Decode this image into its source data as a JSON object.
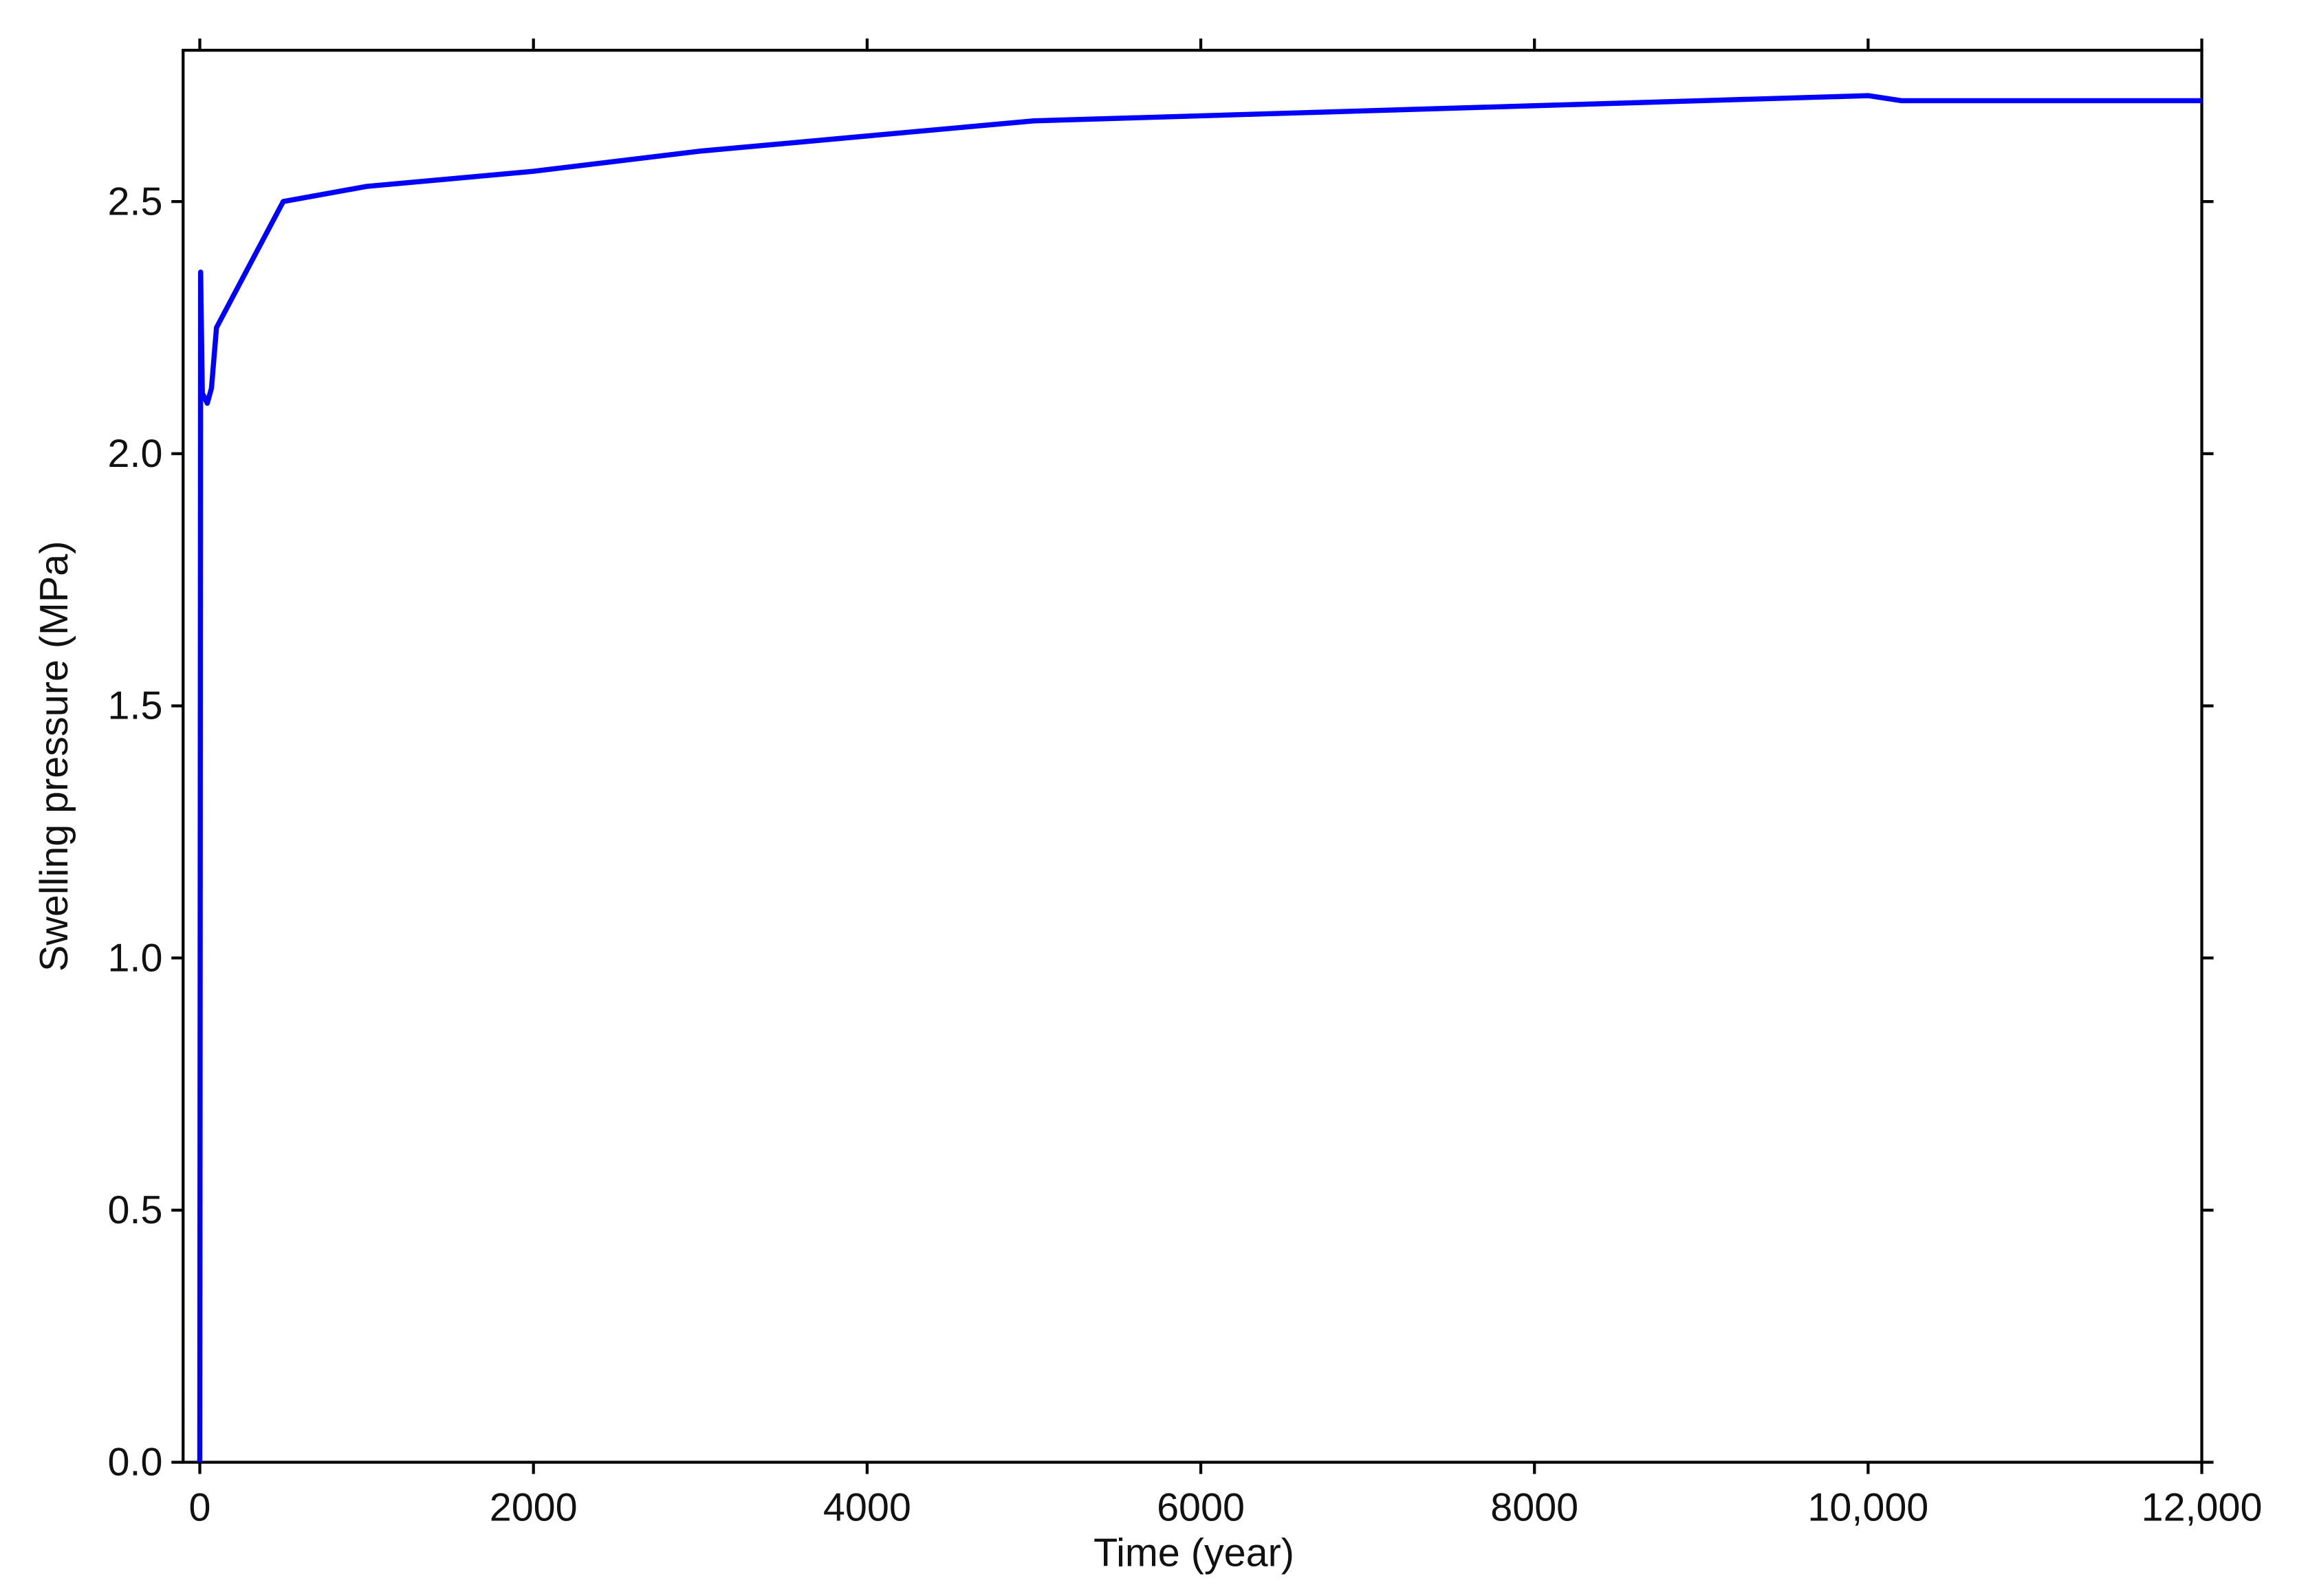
{
  "chart_data": {
    "type": "line",
    "xlabel": "Time (year)",
    "ylabel": "Swelling pressure (MPa)",
    "xlim": [
      -100,
      12000
    ],
    "ylim": [
      0,
      2.8
    ],
    "xticks": [
      0,
      2000,
      4000,
      6000,
      8000,
      {
        "value": 10000,
        "label": "10,000"
      },
      {
        "value": 12000,
        "label": "12,000"
      }
    ],
    "yticks": [
      {
        "value": 0,
        "label": "0.0"
      },
      0.5,
      {
        "value": 1,
        "label": "1.0"
      },
      1.5,
      {
        "value": 2,
        "label": "2.0"
      },
      2.5
    ],
    "grid": false,
    "series": [
      {
        "color": "#0000ff",
        "x": [
          0,
          5,
          15,
          45,
          70,
          100,
          500,
          1000,
          2000,
          3000,
          4000,
          5000,
          6000,
          7000,
          8000,
          9000,
          10000,
          10200,
          12000
        ],
        "values": [
          0,
          2.36,
          2.12,
          2.1,
          2.13,
          2.25,
          2.5,
          2.53,
          2.56,
          2.6,
          2.63,
          2.66,
          2.67,
          2.68,
          2.69,
          2.7,
          2.71,
          2.7,
          2.7
        ]
      }
    ]
  }
}
